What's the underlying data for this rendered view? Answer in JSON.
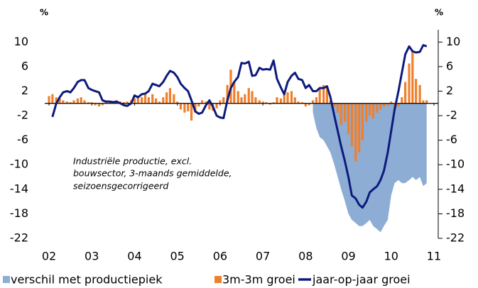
{
  "chart_data": {
    "type": "combo",
    "y_unit_left": "%",
    "y_unit_right": "%",
    "annotation": [
      "Industriële productie, excl.",
      "bouwsector, 3-maands gemiddelde,",
      "seizoensgecorrigeerd"
    ],
    "xlim": [
      2001.9,
      2011.1
    ],
    "xticks": [
      {
        "value": 2002,
        "label": "02"
      },
      {
        "value": 2003,
        "label": "03"
      },
      {
        "value": 2004,
        "label": "04"
      },
      {
        "value": 2005,
        "label": "05"
      },
      {
        "value": 2006,
        "label": "06"
      },
      {
        "value": 2007,
        "label": "07"
      },
      {
        "value": 2008,
        "label": "08"
      },
      {
        "value": 2009,
        "label": "09"
      },
      {
        "value": 2010,
        "label": "10"
      },
      {
        "value": 2011,
        "label": "11"
      }
    ],
    "ylim": [
      -22,
      12
    ],
    "yticks": [
      10,
      6,
      2,
      -2,
      -6,
      -10,
      -14,
      -18,
      -22
    ],
    "y2lim": [
      -22,
      12
    ],
    "y2ticks": [
      10,
      6,
      2,
      -2,
      -6,
      -10,
      -14,
      -18,
      -22
    ],
    "grid": false,
    "legend": "bottom",
    "x": [
      2002.0,
      2002.08,
      2002.17,
      2002.25,
      2002.33,
      2002.42,
      2002.5,
      2002.58,
      2002.67,
      2002.75,
      2002.83,
      2002.92,
      2003.0,
      2003.08,
      2003.17,
      2003.25,
      2003.33,
      2003.42,
      2003.5,
      2003.58,
      2003.67,
      2003.75,
      2003.83,
      2003.92,
      2004.0,
      2004.08,
      2004.17,
      2004.25,
      2004.33,
      2004.42,
      2004.5,
      2004.58,
      2004.67,
      2004.75,
      2004.83,
      2004.92,
      2005.0,
      2005.08,
      2005.17,
      2005.25,
      2005.33,
      2005.42,
      2005.5,
      2005.58,
      2005.67,
      2005.75,
      2005.83,
      2005.92,
      2006.0,
      2006.08,
      2006.17,
      2006.25,
      2006.33,
      2006.42,
      2006.5,
      2006.58,
      2006.67,
      2006.75,
      2006.83,
      2006.92,
      2007.0,
      2007.08,
      2007.17,
      2007.25,
      2007.33,
      2007.42,
      2007.5,
      2007.58,
      2007.67,
      2007.75,
      2007.83,
      2007.92,
      2008.0,
      2008.08,
      2008.17,
      2008.25,
      2008.33,
      2008.42,
      2008.5,
      2008.58,
      2008.67,
      2008.75,
      2008.83,
      2008.92,
      2009.0,
      2009.08,
      2009.17,
      2009.25,
      2009.33,
      2009.42,
      2009.5,
      2009.58,
      2009.67,
      2009.75,
      2009.83,
      2009.92,
      2010.0,
      2010.08,
      2010.17,
      2010.25,
      2010.33,
      2010.42,
      2010.5,
      2010.58,
      2010.67,
      2010.75,
      2010.83
    ],
    "series": [
      {
        "name": "verschil met productiepiek",
        "type": "area",
        "color": "#8eadd4",
        "values": [
          null,
          null,
          null,
          null,
          null,
          null,
          null,
          null,
          null,
          null,
          null,
          null,
          null,
          null,
          null,
          null,
          null,
          null,
          null,
          null,
          null,
          null,
          null,
          null,
          null,
          null,
          null,
          null,
          null,
          null,
          null,
          null,
          null,
          null,
          null,
          null,
          null,
          null,
          null,
          null,
          null,
          null,
          null,
          null,
          null,
          null,
          null,
          null,
          null,
          null,
          null,
          null,
          null,
          null,
          null,
          null,
          null,
          null,
          null,
          null,
          null,
          null,
          null,
          null,
          null,
          null,
          null,
          null,
          null,
          null,
          null,
          null,
          null,
          null,
          -1.5,
          -4,
          -5.5,
          -6,
          -7,
          -8,
          -10,
          -12,
          -14,
          -16,
          -18,
          -19,
          -19.5,
          -20,
          -20,
          -19.5,
          -19,
          -20,
          -20.5,
          -21,
          -20,
          -19,
          -15,
          -13,
          -12.5,
          -13,
          -13,
          -12.5,
          -12,
          -12.5,
          -12,
          -13.5,
          -13
        ]
      },
      {
        "name": "3m-3m groei",
        "type": "bar",
        "color": "#f07f2a",
        "values": [
          1.2,
          1.5,
          1.0,
          0.8,
          0.5,
          0.3,
          0.2,
          0.5,
          0.8,
          1.0,
          0.5,
          0.2,
          0.2,
          -0.3,
          -0.5,
          -0.3,
          0.2,
          0.3,
          0.2,
          0.5,
          0.3,
          0.2,
          0.3,
          0.5,
          0.8,
          1.2,
          1.0,
          1.5,
          1.0,
          1.5,
          0.8,
          0.3,
          1.0,
          1.8,
          2.5,
          1.5,
          0.3,
          -1.0,
          -1.5,
          -1.3,
          -2.8,
          -1.5,
          -0.5,
          0.5,
          0.3,
          -1.0,
          -1.2,
          -0.8,
          0.5,
          1.0,
          3.0,
          5.5,
          3.5,
          2.0,
          1.0,
          1.5,
          2.5,
          2.0,
          1.0,
          0.5,
          0.3,
          0.2,
          -0.2,
          0.2,
          1.0,
          0.8,
          1.5,
          1.8,
          2.0,
          1.0,
          0.3,
          0.2,
          -0.5,
          -0.3,
          0.5,
          1.0,
          2.5,
          3.0,
          2.5,
          0.5,
          -0.5,
          -1.5,
          -3.5,
          -3.0,
          -5,
          -7,
          -9.5,
          -8,
          -6,
          -3,
          -2,
          -2.5,
          -1.5,
          -1,
          -0.5,
          -0.3,
          0.3,
          -1,
          -0.5,
          1,
          3.5,
          6.5,
          8.5,
          4,
          3,
          0.5,
          0.5
        ]
      },
      {
        "name": "jaar-op-jaar groei",
        "type": "line",
        "color": "#0d1a7d",
        "values": [
          null,
          -2.2,
          0,
          1,
          1.8,
          2,
          1.8,
          2.5,
          3.5,
          3.8,
          3.8,
          2.5,
          2.2,
          2.0,
          1.8,
          0.5,
          0.3,
          0.3,
          0.2,
          0.3,
          0.0,
          -0.3,
          -0.4,
          0.0,
          1.3,
          1.0,
          1.5,
          1.6,
          2.0,
          3.2,
          3.0,
          2.8,
          3.5,
          4.5,
          5.3,
          5.0,
          4.3,
          3.2,
          2.5,
          2.0,
          0.5,
          -1.3,
          -1.7,
          -1.5,
          -0.3,
          0.5,
          -0.5,
          -2.0,
          -2.3,
          -2.4,
          0.5,
          2.5,
          3.5,
          4.3,
          6.6,
          6.5,
          6.8,
          4.5,
          4.6,
          5.8,
          5.5,
          5.6,
          5.5,
          7.0,
          4.0,
          2.6,
          1.5,
          3.5,
          4.5,
          5.0,
          4.0,
          3.8,
          2.5,
          3.0,
          2.0,
          2.0,
          2.5,
          2.5,
          2.8,
          1.0,
          -2.0,
          -4.5,
          -7,
          -9.5,
          -12,
          -15,
          -15.5,
          -16.5,
          -17,
          -16,
          -14.5,
          -14,
          -13.5,
          -12.5,
          -11,
          -8,
          -4.5,
          -1,
          2,
          5,
          8,
          9.3,
          8.5,
          8.3,
          8.4,
          9.5,
          9.3
        ]
      }
    ]
  }
}
